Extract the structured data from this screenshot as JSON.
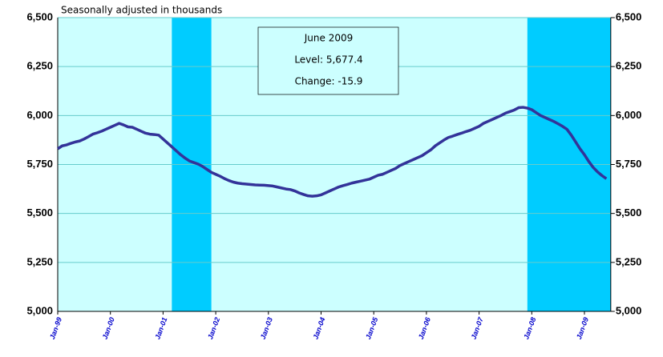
{
  "chart_data": {
    "type": "line",
    "subtitle": "Seasonally adjusted in thousands",
    "categories": [
      "Jan-99",
      null,
      null,
      null,
      null,
      null,
      null,
      null,
      null,
      null,
      null,
      null,
      "Jan-00",
      null,
      null,
      null,
      null,
      null,
      null,
      null,
      null,
      null,
      null,
      null,
      "Jan-01",
      null,
      null,
      null,
      null,
      null,
      null,
      null,
      null,
      null,
      null,
      null,
      "Jan-02",
      null,
      null,
      null,
      null,
      null,
      null,
      null,
      null,
      null,
      null,
      null,
      "Jan-03",
      null,
      null,
      null,
      null,
      null,
      null,
      null,
      null,
      null,
      null,
      null,
      "Jan-04",
      null,
      null,
      null,
      null,
      null,
      null,
      null,
      null,
      null,
      null,
      null,
      "Jan-05",
      null,
      null,
      null,
      null,
      null,
      null,
      null,
      null,
      null,
      null,
      null,
      "Jan-06",
      null,
      null,
      null,
      null,
      null,
      null,
      null,
      null,
      null,
      null,
      null,
      "Jan-07",
      null,
      null,
      null,
      null,
      null,
      null,
      null,
      null,
      null,
      null,
      null,
      "Jan-08",
      null,
      null,
      null,
      null,
      null,
      null,
      null,
      null,
      null,
      null,
      null,
      "Jan-09",
      null,
      null,
      null,
      null,
      null
    ],
    "values": [
      5830,
      5845,
      5850,
      5858,
      5865,
      5870,
      5880,
      5892,
      5905,
      5912,
      5920,
      5930,
      5940,
      5950,
      5960,
      5952,
      5942,
      5940,
      5930,
      5920,
      5910,
      5905,
      5903,
      5900,
      5880,
      5860,
      5840,
      5820,
      5800,
      5783,
      5768,
      5760,
      5752,
      5740,
      5725,
      5710,
      5700,
      5690,
      5678,
      5668,
      5660,
      5655,
      5652,
      5650,
      5648,
      5646,
      5645,
      5644,
      5642,
      5640,
      5635,
      5630,
      5625,
      5622,
      5615,
      5605,
      5597,
      5590,
      5588,
      5590,
      5595,
      5605,
      5615,
      5625,
      5635,
      5642,
      5648,
      5655,
      5660,
      5665,
      5670,
      5675,
      5685,
      5695,
      5700,
      5710,
      5720,
      5730,
      5745,
      5755,
      5765,
      5775,
      5785,
      5795,
      5810,
      5825,
      5845,
      5860,
      5875,
      5888,
      5895,
      5903,
      5910,
      5918,
      5925,
      5935,
      5945,
      5960,
      5970,
      5980,
      5990,
      6000,
      6012,
      6020,
      6028,
      6040,
      6042,
      6038,
      6030,
      6015,
      6000,
      5990,
      5980,
      5970,
      5958,
      5945,
      5930,
      5900,
      5865,
      5830,
      5800,
      5765,
      5735,
      5712,
      5693.3,
      5677.4
    ],
    "color": "#333399",
    "background": "#ccffff",
    "recession_color": "#00ccff",
    "recessions": [
      [
        26,
        35
      ],
      [
        107,
        126
      ]
    ],
    "ylim": [
      5000,
      6500
    ],
    "yticks": [
      {
        "value": 5000,
        "label": "5,000"
      },
      {
        "value": 5250,
        "label": "5,250"
      },
      {
        "value": 5500,
        "label": "5,500"
      },
      {
        "value": 5750,
        "label": "5,750"
      },
      {
        "value": 6000,
        "label": "6,000"
      },
      {
        "value": 6250,
        "label": "6,250"
      },
      {
        "value": 6500,
        "label": "6,500"
      }
    ],
    "y2lim": [
      5000,
      6500
    ],
    "y2ticks": [
      {
        "value": 5000,
        "label": "5,000"
      },
      {
        "value": 5250,
        "label": "5,250"
      },
      {
        "value": 5500,
        "label": "5,500"
      },
      {
        "value": 5750,
        "label": "5,750"
      },
      {
        "value": 6000,
        "label": "6,000"
      },
      {
        "value": 6250,
        "label": "6,250"
      },
      {
        "value": 6500,
        "label": "6,500"
      }
    ],
    "grid": true,
    "annotation": {
      "title": "June 2009",
      "level": "Level: 5,677.4",
      "change": "Change: -15.9"
    }
  }
}
